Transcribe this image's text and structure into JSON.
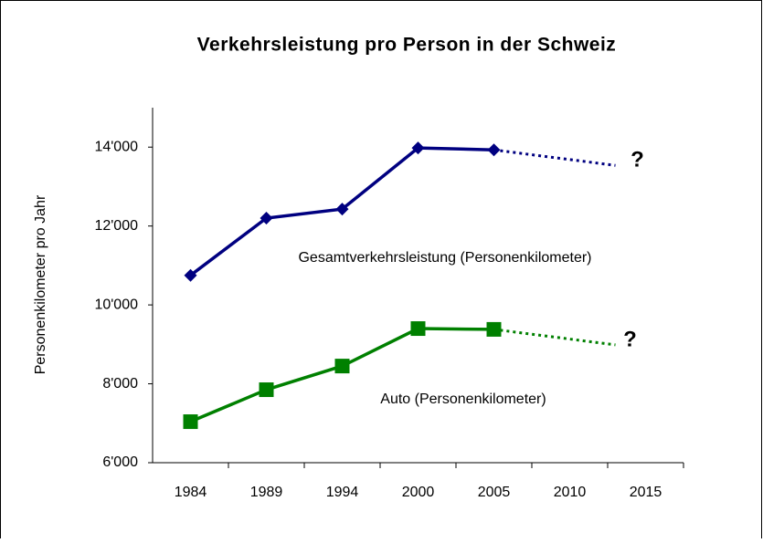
{
  "chart_data": {
    "type": "line",
    "title": "Verkehrsleistung pro Person in der Schweiz",
    "y_label": "Personenkilometer pro Jahr",
    "categories": [
      "1984",
      "1989",
      "1994",
      "2000",
      "2005",
      "2010",
      "2015"
    ],
    "series": [
      {
        "name": "Gesamtverkehrsleistung (Personenkilometer)",
        "color": "#000080",
        "marker": "diamond",
        "values": [
          10750,
          12200,
          12430,
          13980,
          13930,
          null,
          null
        ]
      },
      {
        "name": "Auto (Personenkilometer)",
        "color": "#008000",
        "marker": "square",
        "values": [
          7040,
          7850,
          8450,
          9400,
          9380,
          null,
          null
        ]
      }
    ],
    "annotations": [
      "?",
      "?"
    ],
    "ylim": [
      6000,
      15000
    ],
    "yticks": [
      {
        "value": 6000,
        "label": "6'000"
      },
      {
        "value": 8000,
        "label": "8'000"
      },
      {
        "value": 10000,
        "label": "10'000"
      },
      {
        "value": 12000,
        "label": "12'000"
      },
      {
        "value": 14000,
        "label": "14'000"
      }
    ],
    "grid": false
  }
}
